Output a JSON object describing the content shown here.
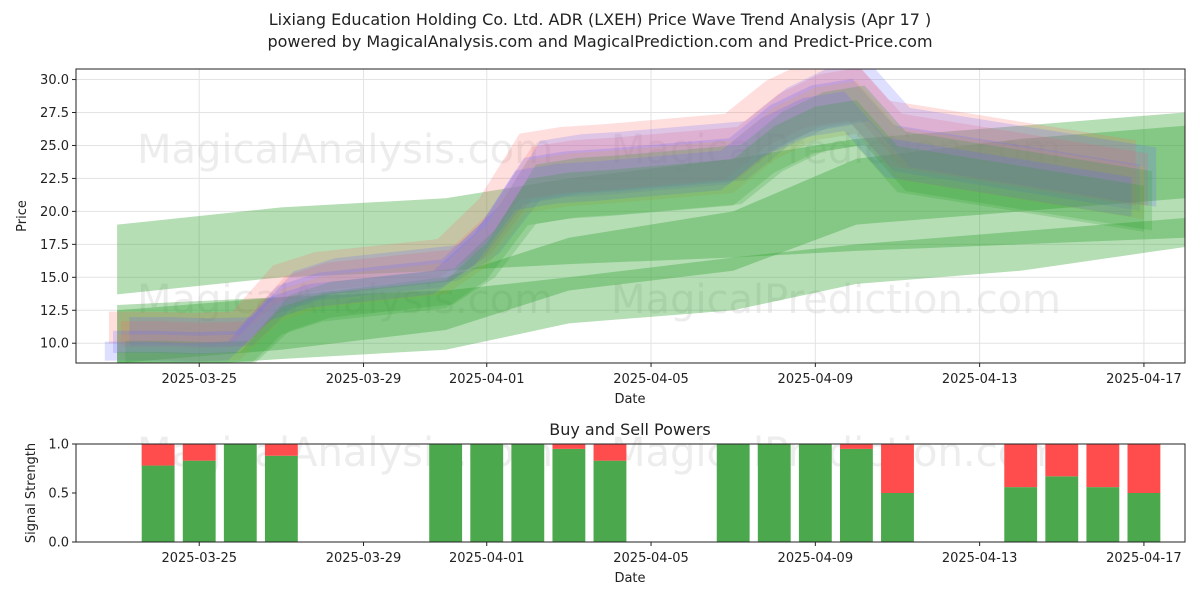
{
  "header": {
    "title_line1": "Lixiang Education Holding Co. Ltd. ADR (LXEH) Price Wave Trend Analysis (Apr 17 )",
    "title_line2": "powered by MagicalAnalysis.com and MagicalPrediction.com and Predict-Price.com"
  },
  "watermarks": [
    "MagicalAnalysis.com",
    "MagicalPrediction.com"
  ],
  "chart_data": [
    {
      "type": "area",
      "title": "",
      "xlabel": "Date",
      "ylabel": "Price",
      "x_range": [
        "2025-03-22",
        "2025-04-18"
      ],
      "ylim": [
        8.5,
        30.8
      ],
      "yticks": [
        10.0,
        12.5,
        15.0,
        17.5,
        20.0,
        22.5,
        25.0,
        27.5,
        30.0
      ],
      "xticks": [
        "2025-03-25",
        "2025-03-29",
        "2025-04-01",
        "2025-04-05",
        "2025-04-09",
        "2025-04-13",
        "2025-04-17"
      ],
      "grid": true,
      "colors": {
        "up": "#2ca02c",
        "price_red": "#ff6b6b",
        "price_blue": "#6b6bff",
        "price_orange": "#d4a24a"
      },
      "price_waves": {
        "dates": [
          "2025-03-23",
          "2025-03-24",
          "2025-03-25",
          "2025-03-26",
          "2025-03-27",
          "2025-03-28",
          "2025-03-31",
          "2025-04-01",
          "2025-04-02",
          "2025-04-03",
          "2025-04-04",
          "2025-04-07",
          "2025-04-08",
          "2025-04-09",
          "2025-04-10",
          "2025-04-11",
          "2025-04-14",
          "2025-04-15",
          "2025-04-16",
          "2025-04-17"
        ],
        "center": [
          10.3,
          10.3,
          10.2,
          10.3,
          13.5,
          14.5,
          15.5,
          18.0,
          22.5,
          23.0,
          23.2,
          24.0,
          26.5,
          28.0,
          28.5,
          25.0,
          23.5,
          23.0,
          22.5,
          22.0
        ],
        "spread": [
          1.2,
          1.2,
          1.2,
          1.2,
          1.5,
          1.5,
          1.5,
          2.0,
          2.5,
          2.5,
          2.5,
          2.5,
          2.5,
          2.5,
          2.5,
          2.5,
          2.5,
          2.5,
          2.5,
          2.5
        ]
      },
      "trend_bands": [
        {
          "dates": [
            "2025-03-23",
            "2025-03-27",
            "2025-03-31",
            "2025-04-03",
            "2025-04-07",
            "2025-04-10",
            "2025-04-14",
            "2025-04-18"
          ],
          "upper": [
            19.0,
            20.3,
            21.0,
            22.5,
            24.0,
            25.5,
            26.5,
            27.5
          ],
          "lower": [
            13.7,
            15.0,
            15.5,
            16.0,
            16.5,
            17.0,
            17.5,
            18.0
          ]
        },
        {
          "dates": [
            "2025-03-23",
            "2025-03-27",
            "2025-03-31",
            "2025-04-03",
            "2025-04-07",
            "2025-04-10",
            "2025-04-14",
            "2025-04-18"
          ],
          "upper": [
            12.9,
            13.5,
            14.0,
            15.0,
            16.5,
            17.5,
            18.5,
            19.5
          ],
          "lower": [
            8.0,
            8.8,
            9.5,
            11.5,
            12.5,
            14.5,
            15.5,
            17.3
          ]
        },
        {
          "dates": [
            "2025-03-23",
            "2025-03-27",
            "2025-03-31",
            "2025-04-03",
            "2025-04-07",
            "2025-04-10",
            "2025-04-14",
            "2025-04-18"
          ],
          "upper": [
            12.5,
            13.5,
            15.0,
            18.0,
            20.0,
            24.0,
            25.5,
            26.5
          ],
          "lower": [
            8.5,
            9.5,
            11.0,
            14.0,
            15.5,
            19.0,
            20.0,
            21.0
          ]
        }
      ]
    },
    {
      "type": "bar",
      "title": "Buy and Sell Powers",
      "xlabel": "Date",
      "ylabel": "Signal Strength",
      "ylim": [
        0,
        1.0
      ],
      "yticks": [
        0.0,
        0.5,
        1.0
      ],
      "x_range": [
        "2025-03-22",
        "2025-04-18"
      ],
      "xticks": [
        "2025-03-25",
        "2025-03-29",
        "2025-04-01",
        "2025-04-05",
        "2025-04-09",
        "2025-04-13",
        "2025-04-17"
      ],
      "colors": {
        "buy": "#4ca84c",
        "sell": "#ff4c4c"
      },
      "dates": [
        "2025-03-24",
        "2025-03-25",
        "2025-03-26",
        "2025-03-27",
        "2025-03-31",
        "2025-04-01",
        "2025-04-02",
        "2025-04-03",
        "2025-04-04",
        "2025-04-07",
        "2025-04-08",
        "2025-04-09",
        "2025-04-10",
        "2025-04-11",
        "2025-04-14",
        "2025-04-15",
        "2025-04-16",
        "2025-04-17"
      ],
      "buy": [
        0.78,
        0.83,
        1.0,
        0.88,
        1.0,
        1.0,
        1.0,
        0.95,
        0.83,
        1.0,
        1.0,
        1.0,
        0.95,
        0.5,
        0.56,
        0.67,
        0.56,
        0.5
      ]
    }
  ]
}
